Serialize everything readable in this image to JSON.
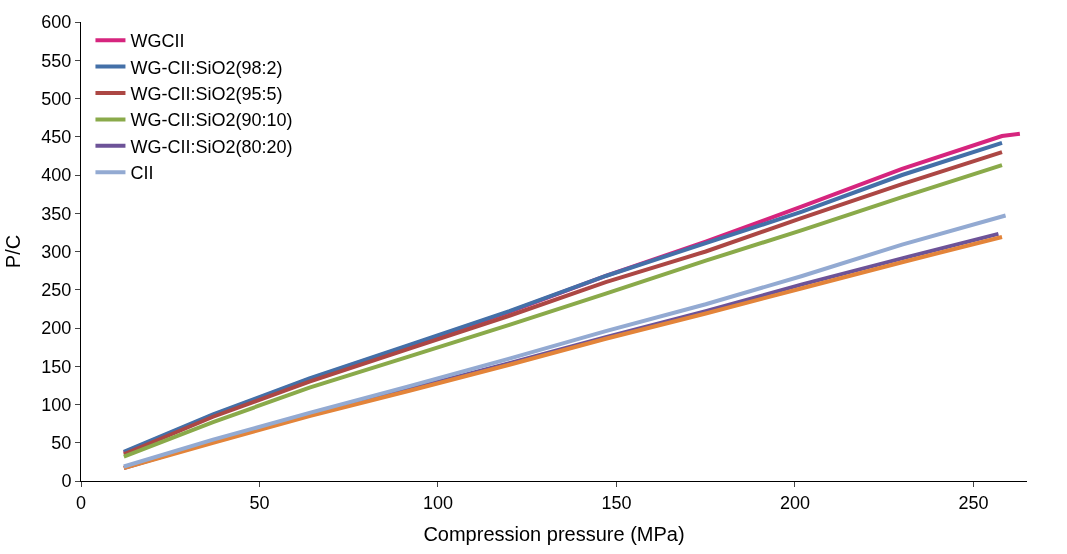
{
  "chart_data": {
    "type": "line",
    "xlabel": "Compression pressure (MPa)",
    "ylabel": "P/C",
    "x": [
      12,
      37,
      64,
      92,
      120,
      147,
      175,
      202,
      230,
      258
    ],
    "xlim": [
      0,
      265
    ],
    "xticks": [
      0,
      50,
      100,
      150,
      200,
      250
    ],
    "ylim": [
      0,
      600
    ],
    "yticks": [
      0,
      50,
      100,
      150,
      200,
      250,
      300,
      350,
      400,
      450,
      500,
      550,
      600
    ],
    "grid": false,
    "legend": "top left",
    "series": [
      {
        "name": "WGCII",
        "color": "#d6257e",
        "x": [
          12,
          37,
          64,
          92,
          120,
          147,
          175,
          202,
          230,
          258,
          263
        ],
        "values": [
          37,
          86,
          133,
          177,
          221,
          268,
          313,
          359,
          408,
          451,
          454
        ]
      },
      {
        "name": "WG-CII:SiO2(98:2)",
        "color": "#4470a8",
        "values": [
          38,
          87,
          134,
          178,
          222,
          268,
          311,
          352,
          400,
          442
        ]
      },
      {
        "name": "WG-CII:SiO2(95:5)",
        "color": "#ac4744",
        "values": [
          35,
          84,
          130,
          173,
          216,
          260,
          300,
          344,
          388,
          430
        ]
      },
      {
        "name": "WG-CII:SiO2(90:10)",
        "color": "#8aaa4a",
        "values": [
          32,
          77,
          122,
          163,
          204,
          245,
          288,
          328,
          371,
          413
        ]
      },
      {
        "name": "WG-CII:SiO2(80:20)",
        "color": "#6d5398",
        "x": [
          12,
          37,
          64,
          92,
          120,
          147,
          175,
          202,
          230,
          257
        ],
        "values": [
          17,
          52,
          86,
          120,
          154,
          188,
          222,
          257,
          291,
          323
        ]
      },
      {
        "color": "#e3843a",
        "values": [
          17,
          50,
          85,
          118,
          152,
          186,
          219,
          252,
          286,
          319
        ]
      },
      {
        "name": "CII",
        "color": "#93aad2",
        "x": [
          12,
          37,
          64,
          92,
          120,
          147,
          175,
          202,
          230,
          259
        ],
        "values": [
          19,
          54,
          89,
          124,
          160,
          196,
          231,
          268,
          309,
          347
        ]
      }
    ]
  }
}
